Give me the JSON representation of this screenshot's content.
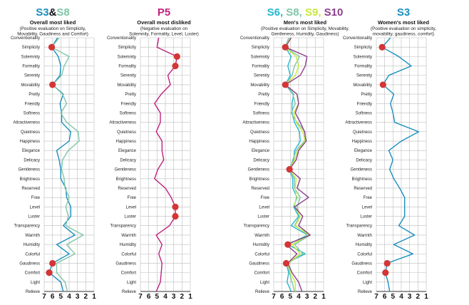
{
  "attributes": [
    "Conventionality",
    "Simplicity",
    "Solemnity",
    "Formality",
    "Serenity",
    "Movability",
    "Pretty",
    "Friendly",
    "Softness",
    "Attractiveness",
    "Quietness",
    "Happiness",
    "Elegance",
    "Delicacy",
    "Gentleness",
    "Brightness",
    "Reserved",
    "Free",
    "Level",
    "Luster",
    "Transparency",
    "Warmth",
    "Humidity",
    "Colorful",
    "Gaudiness",
    "Comfort",
    "Light",
    "Relieve"
  ],
  "axis_ticks": [
    "7",
    "6",
    "5",
    "4",
    "3",
    "2",
    "1"
  ],
  "colors": {
    "S3": "#1a8fbd",
    "S8": "#7fc6a8",
    "P5": "#c0217f",
    "S6": "#22b8d0",
    "S9": "#c8e83c",
    "S10": "#8a3f8a",
    "marker": "#d43535",
    "grid": "#bdbdbd",
    "axis": "#333333"
  },
  "panels": [
    {
      "title_parts": [
        {
          "text": "S3",
          "color": "#1a8fbd"
        },
        {
          "text": "&",
          "color": "#111111"
        },
        {
          "text": "S8",
          "color": "#7fc6a8"
        }
      ],
      "heading": "Overall most liked",
      "subtitle_lines": [
        "(Positive evaluation on Simplicity,",
        "Movability, Gaudiness and Comfort)"
      ]
    },
    {
      "title_parts": [
        {
          "text": "P5",
          "color": "#c0217f"
        }
      ],
      "heading": "Overall most disliked",
      "subtitle_lines": [
        "(Negative evaluation on",
        "Solemnity, Formality, Level, Luster)"
      ]
    },
    {
      "title_parts": [
        {
          "text": "S6, ",
          "color": "#22b8d0"
        },
        {
          "text": "S8, ",
          "color": "#7fc6a8"
        },
        {
          "text": "S9, ",
          "color": "#c8e83c"
        },
        {
          "text": "S10",
          "color": "#8a3f8a"
        }
      ],
      "heading": "Men's most liked",
      "subtitle_lines": [
        "(Positive evaluation on Simplicity, Movability,",
        "Gentleness, Humidity, Gaudiness)"
      ]
    },
    {
      "title_parts": [
        {
          "text": "S3",
          "color": "#1a8fbd"
        }
      ],
      "heading": "Women's most liked",
      "subtitle_lines": [
        "(Positive evaluation on simplicity,",
        "movability, gaudiness, comfort)"
      ]
    }
  ],
  "chart_data": [
    {
      "type": "line",
      "title": "S3&S8 — Overall most liked",
      "xlim": [
        7,
        1
      ],
      "series": [
        {
          "name": "S3",
          "color": "#1a8fbd",
          "values": [
            5.4,
            6.1,
            5.3,
            5.0,
            5.1,
            6.0,
            4.7,
            5.1,
            4.9,
            4.9,
            3.8,
            4.0,
            5.5,
            5.2,
            5.0,
            5.0,
            4.4,
            4.3,
            3.8,
            3.8,
            4.7,
            3.3,
            5.5,
            4.0,
            6.0,
            6.4,
            5.0,
            4.7
          ],
          "markers": [
            1,
            5,
            24,
            25
          ]
        },
        {
          "name": "S8",
          "color": "#7fc6a8",
          "values": [
            5.2,
            6.1,
            4.0,
            4.6,
            4.9,
            6.0,
            4.8,
            4.3,
            5.0,
            4.3,
            2.9,
            2.8,
            4.1,
            4.8,
            4.9,
            4.6,
            4.5,
            4.0,
            4.4,
            4.1,
            4.4,
            2.3,
            4.3,
            3.3,
            5.5,
            5.5,
            4.5,
            4.2
          ],
          "markers": [
            1,
            5,
            24,
            25
          ]
        }
      ]
    },
    {
      "type": "line",
      "title": "P5 — Overall most disliked",
      "xlim": [
        7,
        1
      ],
      "series": [
        {
          "name": "P5",
          "color": "#c0217f",
          "values": [
            4.8,
            5.0,
            2.6,
            2.8,
            3.7,
            3.4,
            4.5,
            5.3,
            4.6,
            4.6,
            5.1,
            4.4,
            4.4,
            4.2,
            4.9,
            5.3,
            4.0,
            3.3,
            2.8,
            2.8,
            3.5,
            5.1,
            4.4,
            4.8,
            4.4,
            4.5,
            4.6,
            5.1
          ],
          "markers": [
            2,
            3,
            18,
            19
          ]
        }
      ]
    },
    {
      "type": "line",
      "title": "S6, S8, S9, S10 — Men's most liked",
      "xlim": [
        7,
        1
      ],
      "series": [
        {
          "name": "S6",
          "color": "#22b8d0",
          "values": [
            5.0,
            5.6,
            4.9,
            5.3,
            5.0,
            5.6,
            4.6,
            4.8,
            4.8,
            4.5,
            3.9,
            3.8,
            4.5,
            4.6,
            5.1,
            4.7,
            4.7,
            4.2,
            4.6,
            4.0,
            4.9,
            2.9,
            5.3,
            3.2,
            5.5,
            5.2,
            5.4,
            4.9
          ],
          "markers": [
            1,
            5,
            14,
            22,
            24
          ]
        },
        {
          "name": "S8",
          "color": "#7fc6a8",
          "values": [
            5.2,
            5.6,
            3.9,
            4.5,
            4.8,
            5.6,
            4.7,
            4.4,
            4.9,
            4.2,
            3.2,
            3.3,
            4.3,
            4.7,
            5.1,
            4.5,
            4.5,
            3.8,
            4.2,
            3.9,
            4.5,
            2.6,
            4.5,
            3.5,
            5.3,
            5.1,
            4.8,
            4.5
          ],
          "markers": [
            1,
            5,
            14,
            22,
            24
          ]
        },
        {
          "name": "S9",
          "color": "#c8e83c",
          "values": [
            5.0,
            5.6,
            4.3,
            4.0,
            4.4,
            5.6,
            4.2,
            4.0,
            4.6,
            4.3,
            3.5,
            3.2,
            4.1,
            4.5,
            5.1,
            4.3,
            4.4,
            4.3,
            4.5,
            3.8,
            4.4,
            2.8,
            4.8,
            3.8,
            5.3,
            5.0,
            4.4,
            4.4
          ],
          "markers": [
            1,
            5,
            14,
            22,
            24
          ]
        },
        {
          "name": "S10",
          "color": "#8a3f8a",
          "values": [
            4.9,
            5.6,
            3.0,
            3.2,
            3.8,
            5.6,
            4.2,
            4.0,
            4.4,
            3.8,
            3.3,
            3.1,
            4.0,
            4.3,
            5.1,
            3.8,
            4.2,
            2.8,
            4.5,
            3.5,
            4.0,
            2.6,
            5.5,
            4.2,
            5.3,
            4.8,
            4.0,
            3.6
          ],
          "markers": [
            1,
            5,
            14,
            22,
            24
          ]
        }
      ]
    },
    {
      "type": "line",
      "title": "S3 — Women's most liked",
      "xlim": [
        7,
        1
      ],
      "series": [
        {
          "name": "S3",
          "color": "#1a8fbd",
          "values": [
            5.3,
            6.3,
            4.3,
            2.8,
            5.5,
            6.2,
            4.9,
            5.3,
            5.0,
            4.8,
            1.9,
            4.0,
            5.5,
            5.0,
            5.4,
            4.9,
            4.2,
            3.6,
            3.6,
            3.6,
            4.3,
            2.4,
            4.9,
            2.6,
            5.7,
            5.9,
            5.6,
            5.4
          ],
          "markers": [
            1,
            5,
            24,
            25
          ]
        }
      ]
    }
  ]
}
